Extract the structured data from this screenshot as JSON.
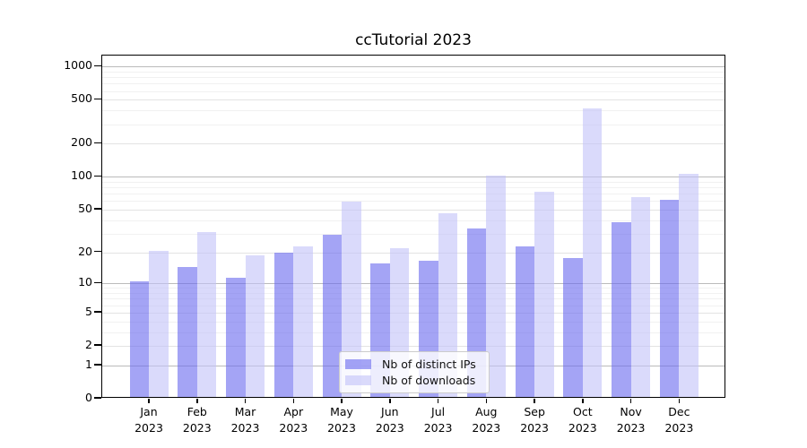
{
  "chart_data": {
    "type": "bar",
    "title": "ccTutorial 2023",
    "categories": [
      "Jan",
      "Feb",
      "Mar",
      "Apr",
      "May",
      "Jun",
      "Jul",
      "Aug",
      "Sep",
      "Oct",
      "Nov",
      "Dec"
    ],
    "category_year": "2023",
    "series": [
      {
        "name": "Nb of distinct IPs",
        "color": "rgba(104,104,238,0.6)",
        "values": [
          10,
          14,
          11,
          19,
          28,
          15,
          16,
          32,
          22,
          17,
          37,
          59
        ]
      },
      {
        "name": "Nb of downloads",
        "color": "rgba(194,194,248,0.6)",
        "values": [
          20,
          30,
          18,
          22,
          57,
          21,
          45,
          98,
          71,
          400,
          63,
          102
        ]
      }
    ],
    "xlabel": "",
    "ylabel": "",
    "y_axis": {
      "scale": "log1p",
      "tick_labels": [
        0,
        1,
        2,
        5,
        10,
        20,
        50,
        100,
        200,
        500,
        1000
      ],
      "range": [
        0,
        1250
      ],
      "grid": true
    },
    "legend": {
      "position": "lower center",
      "entries": [
        "Nb of distinct IPs",
        "Nb of downloads"
      ]
    }
  }
}
